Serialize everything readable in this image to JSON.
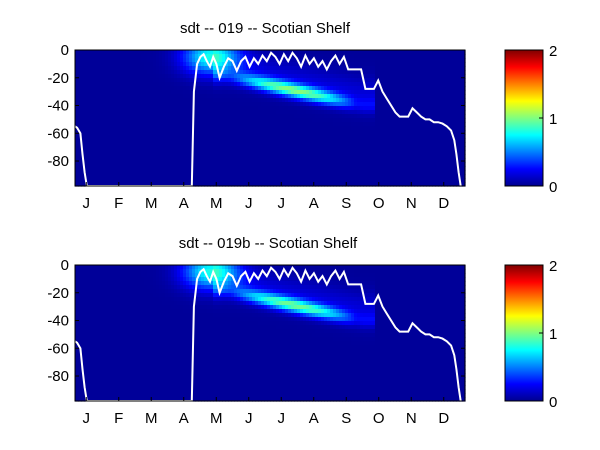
{
  "chart_data": [
    {
      "type": "heatmap",
      "title": "sdt -- 019 -- Scotian Shelf",
      "xlabel": "",
      "ylabel": "",
      "x_tick_labels": [
        "J",
        "F",
        "M",
        "A",
        "M",
        "J",
        "J",
        "A",
        "S",
        "O",
        "N",
        "D"
      ],
      "y_tick_values": [
        0,
        -20,
        -40,
        -60,
        -80
      ],
      "y_tick_labels": [
        "0",
        "-20",
        "-40",
        "-60",
        "-80"
      ],
      "ylim": [
        -98,
        0
      ],
      "xlim_days": [
        1,
        365
      ],
      "colormap": "jet",
      "colorbar": {
        "range": [
          0,
          2
        ],
        "tick_values": [
          0,
          1,
          2
        ],
        "tick_labels": [
          "0",
          "1",
          "2"
        ]
      },
      "field": {
        "background_value": 0.05,
        "spring_bloom": {
          "center_day": 128,
          "depth": -5,
          "peak": 0.75,
          "spread_days": 25,
          "spread_depth": 12
        },
        "deep_max": {
          "start_day": 140,
          "end_day": 270,
          "start_depth": -18,
          "end_depth": -40,
          "peak": 0.9
        }
      },
      "line": {
        "color": "#ffffff",
        "days": [
          1,
          3,
          6,
          8,
          10,
          12,
          110,
          112,
          115,
          118,
          121,
          124,
          127,
          130,
          133,
          136,
          140,
          144,
          148,
          152,
          156,
          160,
          164,
          168,
          172,
          176,
          180,
          184,
          188,
          192,
          196,
          200,
          204,
          208,
          212,
          216,
          220,
          224,
          228,
          232,
          236,
          240,
          244,
          248,
          252,
          256,
          260,
          264,
          268,
          272,
          276,
          280,
          284,
          288,
          292,
          296,
          300,
          304,
          308,
          312,
          316,
          320,
          324,
          328,
          332,
          336,
          340,
          344,
          348,
          352,
          355,
          357,
          359,
          361
        ],
        "depths": [
          -55,
          -56,
          -60,
          -75,
          -88,
          -98,
          -98,
          -30,
          -10,
          -5,
          -3,
          -8,
          -12,
          -5,
          -10,
          -20,
          -12,
          -6,
          -8,
          -15,
          -8,
          -5,
          -12,
          -6,
          -10,
          -4,
          -8,
          -2,
          -5,
          -10,
          -3,
          -8,
          -2,
          -6,
          -12,
          -4,
          -10,
          -6,
          -12,
          -8,
          -14,
          -8,
          -4,
          -10,
          -5,
          -14,
          -14,
          -14,
          -14,
          -28,
          -28,
          -28,
          -22,
          -30,
          -35,
          -40,
          -45,
          -48,
          -48,
          -48,
          -42,
          -45,
          -48,
          -50,
          -50,
          -52,
          -52,
          -53,
          -55,
          -58,
          -65,
          -75,
          -88,
          -98
        ]
      }
    },
    {
      "type": "heatmap",
      "title": "sdt -- 019b -- Scotian Shelf",
      "xlabel": "",
      "ylabel": "",
      "x_tick_labels": [
        "J",
        "F",
        "M",
        "A",
        "M",
        "J",
        "J",
        "A",
        "S",
        "O",
        "N",
        "D"
      ],
      "y_tick_values": [
        0,
        -20,
        -40,
        -60,
        -80
      ],
      "y_tick_labels": [
        "0",
        "-20",
        "-40",
        "-60",
        "-80"
      ],
      "ylim": [
        -98,
        0
      ],
      "xlim_days": [
        1,
        365
      ],
      "colormap": "jet",
      "colorbar": {
        "range": [
          0,
          2
        ],
        "tick_values": [
          0,
          1,
          2
        ],
        "tick_labels": [
          "0",
          "1",
          "2"
        ]
      },
      "field": {
        "background_value": 0.05,
        "spring_bloom": {
          "center_day": 128,
          "depth": -5,
          "peak": 0.75,
          "spread_days": 25,
          "spread_depth": 12
        },
        "deep_max": {
          "start_day": 140,
          "end_day": 270,
          "start_depth": -18,
          "end_depth": -40,
          "peak": 0.85
        }
      },
      "line": {
        "color": "#ffffff",
        "days": [
          1,
          3,
          6,
          8,
          10,
          12,
          110,
          112,
          115,
          118,
          121,
          124,
          127,
          130,
          133,
          136,
          140,
          144,
          148,
          152,
          156,
          160,
          164,
          168,
          172,
          176,
          180,
          184,
          188,
          192,
          196,
          200,
          204,
          208,
          212,
          216,
          220,
          224,
          228,
          232,
          236,
          240,
          244,
          248,
          252,
          256,
          260,
          264,
          268,
          272,
          276,
          280,
          284,
          288,
          292,
          296,
          300,
          304,
          308,
          312,
          316,
          320,
          324,
          328,
          332,
          336,
          340,
          344,
          348,
          352,
          355,
          357,
          359,
          361
        ],
        "depths": [
          -55,
          -56,
          -60,
          -75,
          -88,
          -98,
          -98,
          -30,
          -10,
          -5,
          -3,
          -8,
          -12,
          -5,
          -10,
          -20,
          -12,
          -6,
          -8,
          -15,
          -8,
          -5,
          -12,
          -6,
          -10,
          -4,
          -8,
          -2,
          -5,
          -10,
          -3,
          -8,
          -2,
          -6,
          -12,
          -4,
          -10,
          -6,
          -12,
          -8,
          -14,
          -8,
          -4,
          -10,
          -5,
          -14,
          -14,
          -14,
          -14,
          -28,
          -28,
          -28,
          -22,
          -30,
          -35,
          -40,
          -45,
          -48,
          -48,
          -48,
          -42,
          -45,
          -48,
          -50,
          -50,
          -52,
          -52,
          -53,
          -55,
          -58,
          -65,
          -75,
          -88,
          -98
        ]
      }
    }
  ]
}
